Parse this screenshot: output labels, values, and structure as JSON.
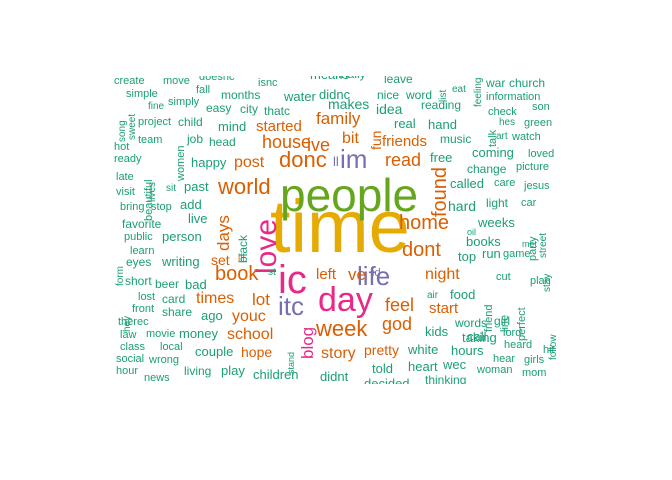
{
  "wordcloud": {
    "palette": {
      "green": "#1b9e77",
      "orange": "#d95f02",
      "purple": "#7570b3",
      "pink": "#e7298a",
      "lime": "#66a61e",
      "yellow": "#e6ab02"
    },
    "words": [
      {
        "text": "time",
        "color": "yellow"
      },
      {
        "text": "people",
        "color": "lime"
      },
      {
        "text": "ic",
        "color": "pink"
      },
      {
        "text": "day",
        "color": "pink"
      },
      {
        "text": "love",
        "color": "pink"
      },
      {
        "text": "life",
        "color": "purple"
      },
      {
        "text": "im",
        "color": "purple"
      },
      {
        "text": "itc",
        "color": "purple"
      },
      {
        "text": "world",
        "color": "orange"
      },
      {
        "text": "donc",
        "color": "orange"
      },
      {
        "text": "home",
        "color": "orange"
      },
      {
        "text": "dont",
        "color": "orange"
      },
      {
        "text": "week",
        "color": "orange"
      },
      {
        "text": "book",
        "color": "orange"
      },
      {
        "text": "found",
        "color": "orange"
      },
      {
        "text": "read",
        "color": "orange"
      },
      {
        "text": "house",
        "color": "orange"
      },
      {
        "text": "ive",
        "color": "orange"
      },
      {
        "text": "family",
        "color": "orange"
      },
      {
        "text": "feel",
        "color": "orange"
      },
      {
        "text": "god",
        "color": "orange"
      },
      {
        "text": "lot",
        "color": "orange"
      },
      {
        "text": "ve",
        "color": "orange"
      },
      {
        "text": "blog",
        "color": "pink"
      },
      {
        "text": "days",
        "color": "orange"
      },
      {
        "text": "night",
        "color": "orange"
      },
      {
        "text": "post",
        "color": "orange"
      },
      {
        "text": "school",
        "color": "orange"
      },
      {
        "text": "story",
        "color": "orange"
      },
      {
        "text": "times",
        "color": "orange"
      },
      {
        "text": "youc",
        "color": "orange"
      },
      {
        "text": "bit",
        "color": "orange"
      },
      {
        "text": "friends",
        "color": "orange"
      },
      {
        "text": "started",
        "color": "orange"
      },
      {
        "text": "left",
        "color": "orange"
      },
      {
        "text": "hope",
        "color": "orange"
      },
      {
        "text": "pretty",
        "color": "orange"
      },
      {
        "text": "start",
        "color": "orange"
      },
      {
        "text": "set",
        "color": "orange"
      },
      {
        "text": "fun",
        "color": "orange"
      },
      {
        "text": "ill",
        "color": "orange"
      },
      {
        "text": "ll",
        "color": "purple"
      },
      {
        "text": "id",
        "color": "purple"
      },
      {
        "text": "st",
        "color": "green"
      },
      {
        "text": "create",
        "color": "green"
      },
      {
        "text": "move",
        "color": "green"
      },
      {
        "text": "doesnc",
        "color": "green"
      },
      {
        "text": "isnc",
        "color": "green"
      },
      {
        "text": "means",
        "color": "green"
      },
      {
        "text": "finally",
        "color": "green"
      },
      {
        "text": "leave",
        "color": "green"
      },
      {
        "text": "list",
        "color": "green"
      },
      {
        "text": "war",
        "color": "green"
      },
      {
        "text": "church",
        "color": "green"
      },
      {
        "text": "simple",
        "color": "green"
      },
      {
        "text": "fall",
        "color": "green"
      },
      {
        "text": "months",
        "color": "green"
      },
      {
        "text": "water",
        "color": "green"
      },
      {
        "text": "didnc",
        "color": "green"
      },
      {
        "text": "nice",
        "color": "green"
      },
      {
        "text": "word",
        "color": "green"
      },
      {
        "text": "eat",
        "color": "green"
      },
      {
        "text": "feeling",
        "color": "green"
      },
      {
        "text": "information",
        "color": "green"
      },
      {
        "text": "fine",
        "color": "green"
      },
      {
        "text": "simply",
        "color": "green"
      },
      {
        "text": "easy",
        "color": "green"
      },
      {
        "text": "city",
        "color": "green"
      },
      {
        "text": "thatc",
        "color": "green"
      },
      {
        "text": "makes",
        "color": "green"
      },
      {
        "text": "idea",
        "color": "green"
      },
      {
        "text": "reading",
        "color": "green"
      },
      {
        "text": "son",
        "color": "green"
      },
      {
        "text": "song",
        "color": "green"
      },
      {
        "text": "sweet",
        "color": "green"
      },
      {
        "text": "project",
        "color": "green"
      },
      {
        "text": "child",
        "color": "green"
      },
      {
        "text": "mind",
        "color": "green"
      },
      {
        "text": "real",
        "color": "green"
      },
      {
        "text": "hand",
        "color": "green"
      },
      {
        "text": "check",
        "color": "green"
      },
      {
        "text": "hes",
        "color": "green"
      },
      {
        "text": "green",
        "color": "green"
      },
      {
        "text": "hot",
        "color": "green"
      },
      {
        "text": "team",
        "color": "green"
      },
      {
        "text": "women",
        "color": "green"
      },
      {
        "text": "job",
        "color": "green"
      },
      {
        "text": "head",
        "color": "green"
      },
      {
        "text": "music",
        "color": "green"
      },
      {
        "text": "talk",
        "color": "green"
      },
      {
        "text": "art",
        "color": "green"
      },
      {
        "text": "watch",
        "color": "green"
      },
      {
        "text": "ready",
        "color": "green"
      },
      {
        "text": "beautiful",
        "color": "green"
      },
      {
        "text": "happy",
        "color": "green"
      },
      {
        "text": "free",
        "color": "green"
      },
      {
        "text": "coming",
        "color": "green"
      },
      {
        "text": "loved",
        "color": "green"
      },
      {
        "text": "late",
        "color": "green"
      },
      {
        "text": "lives",
        "color": "green"
      },
      {
        "text": "change",
        "color": "green"
      },
      {
        "text": "picture",
        "color": "green"
      },
      {
        "text": "visit",
        "color": "green"
      },
      {
        "text": "sit",
        "color": "green"
      },
      {
        "text": "past",
        "color": "green"
      },
      {
        "text": "called",
        "color": "green"
      },
      {
        "text": "care",
        "color": "green"
      },
      {
        "text": "jesus",
        "color": "green"
      },
      {
        "text": "bring",
        "color": "green"
      },
      {
        "text": "stop",
        "color": "green"
      },
      {
        "text": "add",
        "color": "green"
      },
      {
        "text": "hard",
        "color": "green"
      },
      {
        "text": "light",
        "color": "green"
      },
      {
        "text": "car",
        "color": "green"
      },
      {
        "text": "party",
        "color": "green"
      },
      {
        "text": "favorite",
        "color": "green"
      },
      {
        "text": "live",
        "color": "green"
      },
      {
        "text": "black",
        "color": "green"
      },
      {
        "text": "weeks",
        "color": "green"
      },
      {
        "text": "street",
        "color": "green"
      },
      {
        "text": "public",
        "color": "green"
      },
      {
        "text": "person",
        "color": "green"
      },
      {
        "text": "oil",
        "color": "green"
      },
      {
        "text": "met",
        "color": "green"
      },
      {
        "text": "form",
        "color": "green"
      },
      {
        "text": "learn",
        "color": "green"
      },
      {
        "text": "books",
        "color": "green"
      },
      {
        "text": "stay",
        "color": "green"
      },
      {
        "text": "eyes",
        "color": "green"
      },
      {
        "text": "writing",
        "color": "green"
      },
      {
        "text": "top",
        "color": "green"
      },
      {
        "text": "run",
        "color": "green"
      },
      {
        "text": "game",
        "color": "green"
      },
      {
        "text": "short",
        "color": "green"
      },
      {
        "text": "beer",
        "color": "green"
      },
      {
        "text": "bad",
        "color": "green"
      },
      {
        "text": "cut",
        "color": "green"
      },
      {
        "text": "friend",
        "color": "green"
      },
      {
        "text": "plan",
        "color": "green"
      },
      {
        "text": "hey",
        "color": "green"
      },
      {
        "text": "lost",
        "color": "green"
      },
      {
        "text": "card",
        "color": "green"
      },
      {
        "text": "air",
        "color": "green"
      },
      {
        "text": "food",
        "color": "green"
      },
      {
        "text": "line",
        "color": "green"
      },
      {
        "text": "perfect",
        "color": "green"
      },
      {
        "text": "front",
        "color": "green"
      },
      {
        "text": "share",
        "color": "green"
      },
      {
        "text": "ago",
        "color": "green"
      },
      {
        "text": "therec",
        "color": "green"
      },
      {
        "text": "words",
        "color": "green"
      },
      {
        "text": "girl",
        "color": "green"
      },
      {
        "text": "law",
        "color": "green"
      },
      {
        "text": "movie",
        "color": "green"
      },
      {
        "text": "money",
        "color": "green"
      },
      {
        "text": "kids",
        "color": "green"
      },
      {
        "text": "call",
        "color": "green"
      },
      {
        "text": "lord",
        "color": "green"
      },
      {
        "text": "follow",
        "color": "green"
      },
      {
        "text": "class",
        "color": "green"
      },
      {
        "text": "local",
        "color": "green"
      },
      {
        "text": "taking",
        "color": "green"
      },
      {
        "text": "heard",
        "color": "green"
      },
      {
        "text": "couple",
        "color": "green"
      },
      {
        "text": "white",
        "color": "green"
      },
      {
        "text": "hours",
        "color": "green"
      },
      {
        "text": "hit",
        "color": "green"
      },
      {
        "text": "social",
        "color": "green"
      },
      {
        "text": "wrong",
        "color": "green"
      },
      {
        "text": "stand",
        "color": "green"
      },
      {
        "text": "heart",
        "color": "green"
      },
      {
        "text": "wec",
        "color": "green"
      },
      {
        "text": "hear",
        "color": "green"
      },
      {
        "text": "girls",
        "color": "green"
      },
      {
        "text": "hour",
        "color": "green"
      },
      {
        "text": "news",
        "color": "green"
      },
      {
        "text": "living",
        "color": "green"
      },
      {
        "text": "play",
        "color": "green"
      },
      {
        "text": "children",
        "color": "green"
      },
      {
        "text": "didnt",
        "color": "green"
      },
      {
        "text": "told",
        "color": "green"
      },
      {
        "text": "woman",
        "color": "green"
      },
      {
        "text": "mom",
        "color": "green"
      },
      {
        "text": "decided",
        "color": "green"
      },
      {
        "text": "thinking",
        "color": "green"
      }
    ]
  }
}
